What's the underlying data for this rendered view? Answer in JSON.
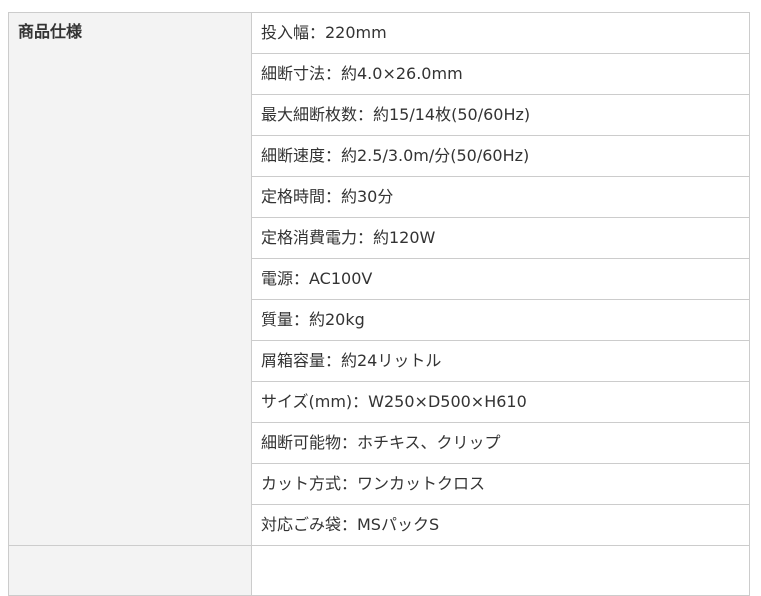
{
  "spec": {
    "header": "商品仕様",
    "rows": [
      "投入幅：220mm",
      "細断寸法：約4.0×26.0mm",
      "最大細断枚数：約15/14枚(50/60Hz)",
      "細断速度：約2.5/3.0m/分(50/60Hz)",
      "定格時間：約30分",
      "定格消費電力：約120W",
      "電源：AC100V",
      "質量：約20kg",
      "屑箱容量：約24リットル",
      "サイズ(mm)：W250×D500×H610",
      "細断可能物：ホチキス、クリップ",
      "カット方式：ワンカットクロス",
      "対応ごみ袋：MSパックS"
    ]
  }
}
